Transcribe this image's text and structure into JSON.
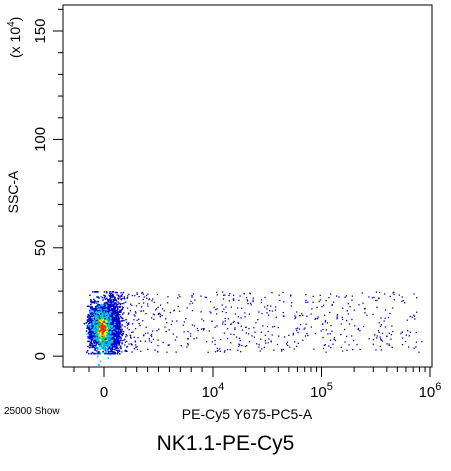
{
  "chart_data": {
    "type": "scatter",
    "title": "NK1.1-PE-Cy5",
    "xlabel": "PE-Cy5 Y675-PC5-A",
    "ylabel": "SSC-A",
    "y_multiplier_label": "(x 10^4)",
    "event_count_label": "25000 Show",
    "x_scale": "biexponential",
    "x_range": [
      -1000,
      1000000
    ],
    "y_range": [
      -5,
      162
    ],
    "y_ticks": [
      0,
      50,
      100,
      150
    ],
    "x_ticks": [
      {
        "value": 0,
        "label": "0",
        "exp": ""
      },
      {
        "value": 10000,
        "label": "10",
        "exp": "4"
      },
      {
        "value": 100000,
        "label": "10",
        "exp": "5"
      },
      {
        "value": 1000000,
        "label": "10",
        "exp": "6"
      }
    ],
    "population": {
      "events": 25000,
      "main_cluster": {
        "x_center": 0,
        "y_center": 13,
        "y_spread": [
          1,
          30
        ]
      },
      "tail": {
        "x_extent": 700000,
        "y_spread": [
          2,
          30
        ]
      }
    },
    "colors": {
      "low_density": "#0000cc",
      "mid_density": "#00c8ff",
      "high_density": "#ff2000",
      "peak_density": "#ffff00"
    }
  }
}
